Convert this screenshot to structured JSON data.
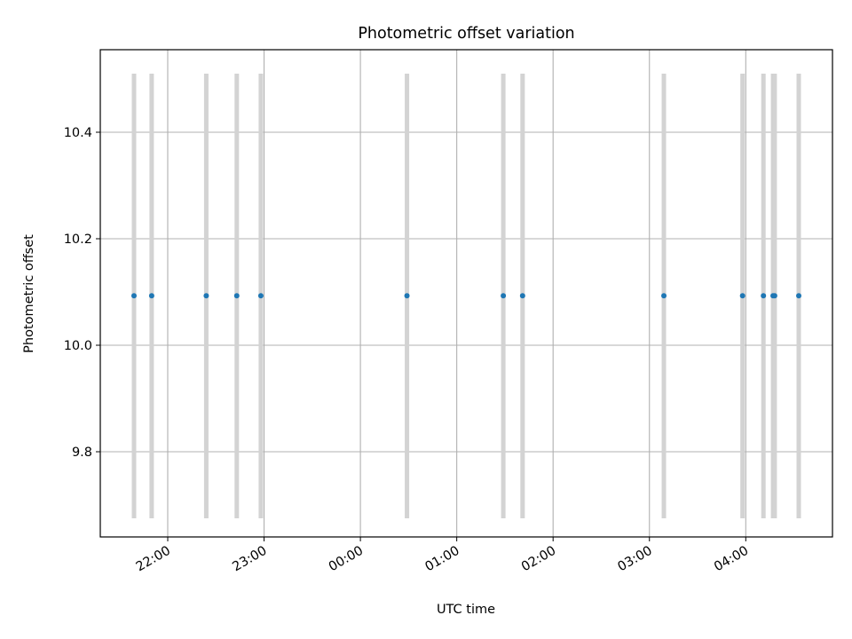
{
  "chart_data": {
    "type": "scatter",
    "title": "Photometric offset variation",
    "xlabel": "UTC time",
    "ylabel": "Photometric offset",
    "grid": true,
    "x_ticks": [
      "22:00",
      "23:00",
      "00:00",
      "01:00",
      "02:00",
      "03:00",
      "04:00"
    ],
    "y_ticks": [
      "9.8",
      "10.0",
      "10.2",
      "10.4"
    ],
    "y_tick_values": [
      9.8,
      10.0,
      10.2,
      10.4
    ],
    "xlim": [
      "21:18",
      "04:54"
    ],
    "ylim": [
      9.64,
      10.555
    ],
    "marker_color": "#1f77b4",
    "errorbar_color": "#d3d3d3",
    "series": [
      {
        "x": [
          "21:39",
          "21:50",
          "22:24",
          "22:43",
          "22:58",
          "00:29",
          "01:29",
          "01:41",
          "03:09",
          "03:58",
          "04:11",
          "04:17",
          "04:18",
          "04:33"
        ],
        "y": [
          10.093,
          10.093,
          10.093,
          10.093,
          10.093,
          10.093,
          10.093,
          10.093,
          10.093,
          10.093,
          10.093,
          10.093,
          10.093,
          10.093
        ],
        "y_low": [
          9.675,
          9.675,
          9.675,
          9.675,
          9.675,
          9.675,
          9.675,
          9.675,
          9.675,
          9.675,
          9.675,
          9.675,
          9.675,
          9.675
        ],
        "y_high": [
          10.51,
          10.51,
          10.51,
          10.51,
          10.51,
          10.51,
          10.51,
          10.51,
          10.51,
          10.51,
          10.51,
          10.51,
          10.51,
          10.51
        ]
      }
    ]
  }
}
